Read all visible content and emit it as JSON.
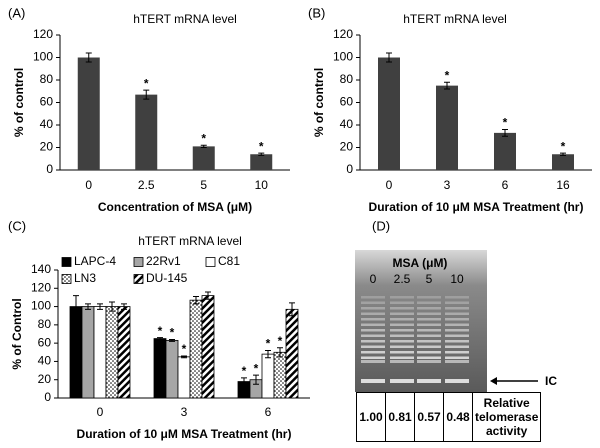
{
  "chart_data": [
    {
      "type": "bar",
      "panel": "(A)",
      "title": "hTERT mRNA level",
      "ylabel": "% of control",
      "xlabel": "Concentration of MSA (μM)",
      "categories": [
        "0",
        "2.5",
        "5",
        "10"
      ],
      "values": [
        100,
        67,
        21,
        14
      ],
      "errors": [
        4,
        4,
        1,
        1
      ],
      "significance": [
        null,
        "*",
        "*",
        "*"
      ],
      "color": "#404040",
      "ylim": [
        0,
        120
      ],
      "yticks": [
        0,
        20,
        40,
        60,
        80,
        100,
        120
      ]
    },
    {
      "type": "bar",
      "panel": "(B)",
      "title": "hTERT mRNA level",
      "ylabel": "% of control",
      "xlabel": "Duration of 10 μM MSA Treatment (hr)",
      "categories": [
        "0",
        "3",
        "6",
        "16"
      ],
      "values": [
        100,
        75,
        33,
        14
      ],
      "errors": [
        4,
        3,
        3,
        1
      ],
      "significance": [
        null,
        "*",
        "*",
        "*"
      ],
      "color": "#404040",
      "ylim": [
        0,
        120
      ],
      "yticks": [
        0,
        20,
        40,
        60,
        80,
        100,
        120
      ]
    },
    {
      "type": "grouped-bar",
      "panel": "(C)",
      "title": "hTERT mRNA level",
      "ylabel": "% of Control",
      "xlabel": "Duration of 10 μM MSA Treatment (hr)",
      "categories": [
        "0",
        "3",
        "6"
      ],
      "series": [
        {
          "name": "LAPC-4",
          "color": "#000000",
          "pattern": "solid",
          "values": [
            100,
            65,
            18
          ],
          "errors": [
            12,
            1,
            4
          ],
          "significance": [
            null,
            "*",
            "*"
          ]
        },
        {
          "name": "22Rv1",
          "color": "#a6a6a6",
          "pattern": "solid",
          "values": [
            100,
            63,
            20
          ],
          "errors": [
            3,
            1,
            5
          ],
          "significance": [
            null,
            "*",
            "*"
          ]
        },
        {
          "name": "C81",
          "color": "#ffffff",
          "pattern": "solid",
          "values": [
            100,
            45,
            48
          ],
          "errors": [
            3,
            1,
            4
          ],
          "significance": [
            null,
            "*",
            "*"
          ]
        },
        {
          "name": "LN3",
          "color": "#ffffff",
          "pattern": "dots",
          "values": [
            100,
            107,
            50
          ],
          "errors": [
            5,
            4,
            5
          ],
          "significance": [
            null,
            null,
            "*"
          ]
        },
        {
          "name": "DU-145",
          "color": "#ffffff",
          "pattern": "diagonal",
          "values": [
            100,
            112,
            97
          ],
          "errors": [
            3,
            4,
            7
          ],
          "significance": [
            null,
            null,
            null
          ]
        }
      ],
      "ylim": [
        0,
        140
      ],
      "yticks": [
        0,
        20,
        40,
        60,
        80,
        100,
        120,
        140
      ]
    }
  ],
  "panel_d": {
    "panel": "(D)",
    "header": "MSA (μM)",
    "lanes": [
      "0",
      "2.5",
      "5",
      "10"
    ],
    "band_label": "IC",
    "table": {
      "values": [
        "1.00",
        "0.81",
        "0.57",
        "0.48"
      ],
      "label": "Relative telomerase activity"
    }
  }
}
